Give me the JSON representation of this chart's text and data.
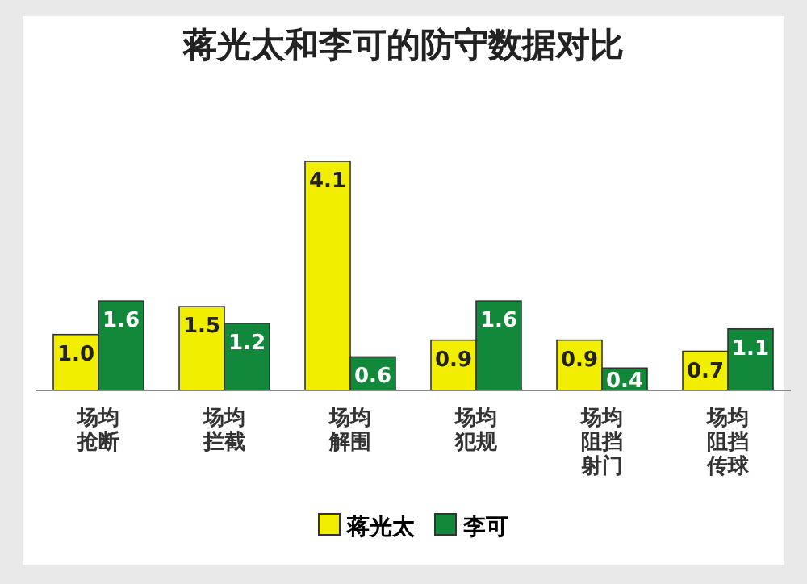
{
  "chart_data": {
    "type": "bar",
    "title": "蒋光太和李可的防守数据对比",
    "categories": [
      "场均抢断",
      "场均拦截",
      "场均解围",
      "场均犯规",
      "场均阻挡射门",
      "场均阻挡传球"
    ],
    "series": [
      {
        "name": "蒋光太",
        "color": "#f2ee00",
        "values": [
          1.0,
          1.5,
          4.1,
          0.9,
          0.9,
          0.7
        ],
        "value_labels": [
          "1.0",
          "1.5",
          "4.1",
          "0.9",
          "0.9",
          "0.7"
        ]
      },
      {
        "name": "李可",
        "color": "#11883a",
        "values": [
          1.6,
          1.2,
          0.6,
          1.6,
          0.4,
          1.1
        ],
        "value_labels": [
          "1.6",
          "1.2",
          "0.6",
          "1.6",
          "0.4",
          "1.1"
        ]
      }
    ],
    "legend": "bottom"
  }
}
